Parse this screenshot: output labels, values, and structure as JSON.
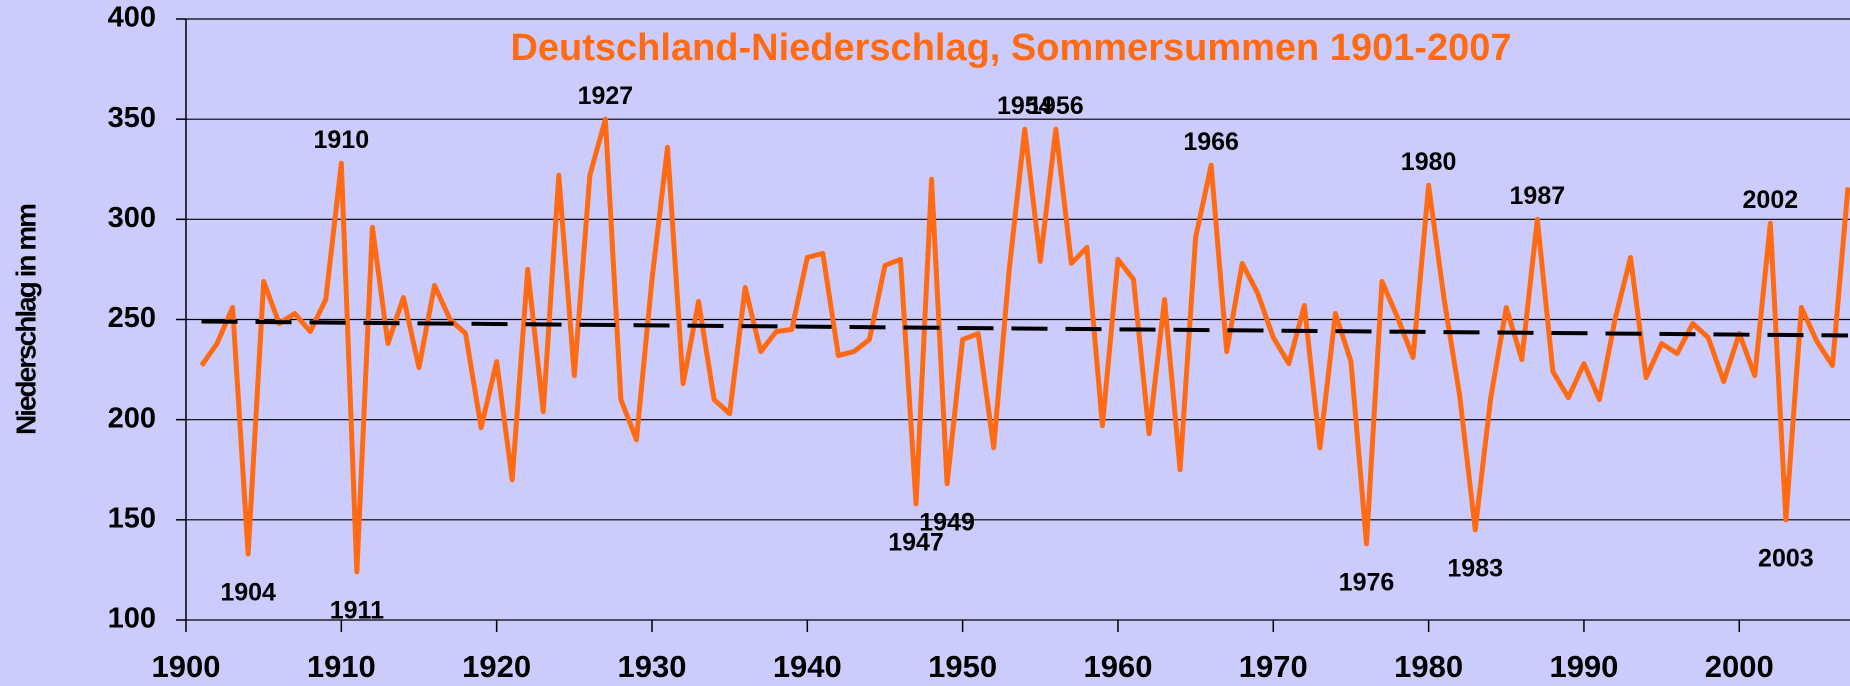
{
  "chart_data": {
    "type": "line",
    "title": "Deutschland-Niederschlag, Sommersummen 1901-2007",
    "y_label": "Niederschlag in mm",
    "x": [
      1901,
      1902,
      1903,
      1904,
      1905,
      1906,
      1907,
      1908,
      1909,
      1910,
      1911,
      1912,
      1913,
      1914,
      1915,
      1916,
      1917,
      1918,
      1919,
      1920,
      1921,
      1922,
      1923,
      1924,
      1925,
      1926,
      1927,
      1928,
      1929,
      1930,
      1931,
      1932,
      1933,
      1934,
      1935,
      1936,
      1937,
      1938,
      1939,
      1940,
      1941,
      1942,
      1943,
      1944,
      1945,
      1946,
      1947,
      1948,
      1949,
      1950,
      1951,
      1952,
      1953,
      1954,
      1955,
      1956,
      1957,
      1958,
      1959,
      1960,
      1961,
      1962,
      1963,
      1964,
      1965,
      1966,
      1967,
      1968,
      1969,
      1970,
      1971,
      1972,
      1973,
      1974,
      1975,
      1976,
      1977,
      1978,
      1979,
      1980,
      1981,
      1982,
      1983,
      1984,
      1985,
      1986,
      1987,
      1988,
      1989,
      1990,
      1991,
      1992,
      1993,
      1994,
      1995,
      1996,
      1997,
      1998,
      1999,
      2000,
      2001,
      2002,
      2003,
      2004,
      2005,
      2006,
      2007
    ],
    "series": [
      {
        "color": "#ff6a13",
        "values": [
          227,
          238,
          256,
          133,
          269,
          248,
          253,
          244,
          260,
          328,
          124,
          296,
          238,
          261,
          226,
          267,
          250,
          243,
          196,
          229,
          170,
          275,
          204,
          322,
          222,
          322,
          350,
          210,
          190,
          270,
          336,
          218,
          259,
          210,
          203,
          266,
          234,
          244,
          245,
          281,
          283,
          232,
          234,
          240,
          277,
          280,
          158,
          320,
          168,
          240,
          243,
          186,
          275,
          345,
          279,
          345,
          278,
          286,
          197,
          280,
          270,
          193,
          260,
          175,
          291,
          327,
          234,
          278,
          263,
          241,
          228,
          257,
          186,
          253,
          229,
          138,
          269,
          251,
          231,
          317,
          260,
          212,
          145,
          211,
          256,
          230,
          300,
          224,
          211,
          228,
          210,
          250,
          281,
          221,
          238,
          233,
          248,
          241,
          219,
          243,
          222,
          298,
          150,
          256,
          239,
          227,
          316
        ]
      }
    ],
    "trend": {
      "color": "#000000",
      "x": [
        1901,
        2007
      ],
      "values": [
        249,
        242
      ]
    },
    "annotations": [
      {
        "label": "1904",
        "x": 1904,
        "position": "below"
      },
      {
        "label": "1910",
        "x": 1910,
        "position": "above"
      },
      {
        "label": "1911",
        "x": 1911,
        "position": "below"
      },
      {
        "label": "1927",
        "x": 1927,
        "position": "above"
      },
      {
        "label": "1947",
        "x": 1947,
        "position": "below"
      },
      {
        "label": "1949",
        "x": 1949,
        "position": "below"
      },
      {
        "label": "1954",
        "x": 1954,
        "position": "above"
      },
      {
        "label": "1956",
        "x": 1956,
        "position": "above"
      },
      {
        "label": "1966",
        "x": 1966,
        "position": "above"
      },
      {
        "label": "1976",
        "x": 1976,
        "position": "below"
      },
      {
        "label": "1980",
        "x": 1980,
        "position": "above"
      },
      {
        "label": "1983",
        "x": 1983,
        "position": "below"
      },
      {
        "label": "1987",
        "x": 1987,
        "position": "above"
      },
      {
        "label": "2002",
        "x": 2002,
        "position": "above"
      },
      {
        "label": "2003",
        "x": 2003,
        "position": "below"
      }
    ],
    "xlim": [
      1900,
      2007
    ],
    "xticks": [
      1900,
      1910,
      1920,
      1930,
      1940,
      1950,
      1960,
      1970,
      1980,
      1990,
      2000
    ],
    "ylim": [
      100,
      400
    ],
    "yticks": [
      100,
      150,
      200,
      250,
      300,
      350,
      400
    ],
    "grid": true
  }
}
